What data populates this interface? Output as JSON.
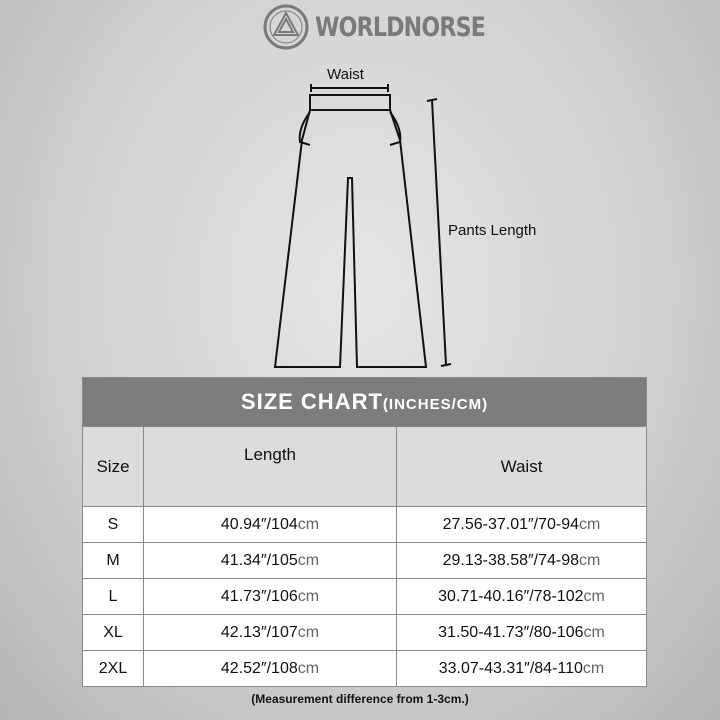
{
  "brand": {
    "name": "WORLDNORSE",
    "icon": "valknut-logo"
  },
  "diagram": {
    "waist_label": "Waist",
    "length_label": "Pants Length"
  },
  "table": {
    "title": "SIZE CHART",
    "title_units": "(INCHES/CM)",
    "headers": [
      "Size",
      "Length",
      "Waist"
    ],
    "rows": [
      {
        "size": "S",
        "length_in": "40.94″/104",
        "length_unit": "cm",
        "waist_in": "27.56-37.01″/70-94",
        "waist_unit": "cm"
      },
      {
        "size": "M",
        "length_in": "41.34″/105",
        "length_unit": "cm",
        "waist_in": "29.13-38.58″/74-98",
        "waist_unit": "cm"
      },
      {
        "size": "L",
        "length_in": "41.73″/106",
        "length_unit": "cm",
        "waist_in": "30.71-40.16″/78-102",
        "waist_unit": "cm"
      },
      {
        "size": "XL",
        "length_in": "42.13″/107",
        "length_unit": "cm",
        "waist_in": "31.50-41.73″/80-106",
        "waist_unit": "cm"
      },
      {
        "size": "2XL",
        "length_in": "42.52″/108",
        "length_unit": "cm",
        "waist_in": "33.07-43.31″/84-110",
        "waist_unit": "cm"
      }
    ]
  },
  "note": "(Measurement difference from 1-3cm.)"
}
